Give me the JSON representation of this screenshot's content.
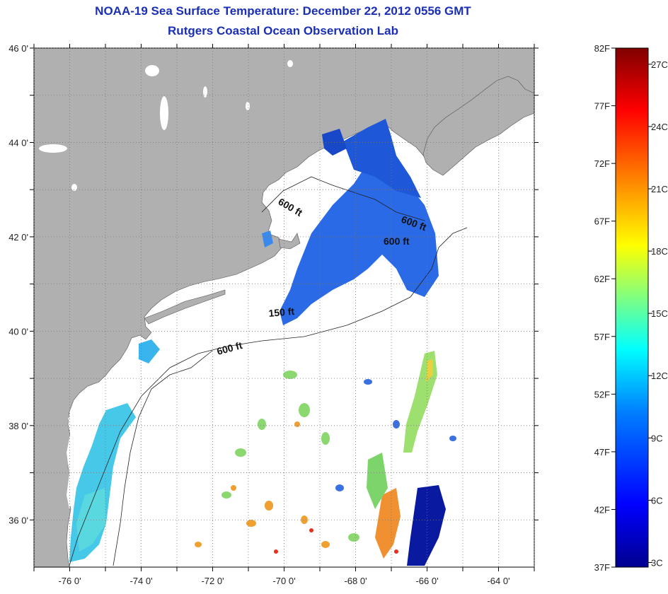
{
  "title": {
    "line1": "NOAA-19 Sea Surface Temperature:  December 22, 2012 0556 GMT",
    "line2": "Rutgers Coastal Ocean Observation Lab"
  },
  "map": {
    "lon_range": [
      -77,
      -63
    ],
    "lat_range": [
      35,
      46
    ],
    "lat_ticks": [
      {
        "value": 46,
        "label": "46 0'"
      },
      {
        "value": 44,
        "label": "44 0'"
      },
      {
        "value": 42,
        "label": "42 0'"
      },
      {
        "value": 40,
        "label": "40 0'"
      },
      {
        "value": 38,
        "label": "38 0'"
      },
      {
        "value": 36,
        "label": "36 0'"
      }
    ],
    "lon_ticks": [
      {
        "value": -76,
        "label": "-76 0'"
      },
      {
        "value": -74,
        "label": "-74 0'"
      },
      {
        "value": -72,
        "label": "-72 0'"
      },
      {
        "value": -70,
        "label": "-70 0'"
      },
      {
        "value": -68,
        "label": "-68 0'"
      },
      {
        "value": -66,
        "label": "-66 0'"
      },
      {
        "value": -64,
        "label": "-64 0'"
      }
    ],
    "contour_labels": [
      {
        "text": "600 ft"
      },
      {
        "text": "600 ft"
      },
      {
        "text": "600 ft"
      },
      {
        "text": "150 ft"
      },
      {
        "text": "600 ft"
      }
    ]
  },
  "colorbar": {
    "fahrenheit": [
      {
        "value": 82,
        "label": "82F"
      },
      {
        "value": 77,
        "label": "77F"
      },
      {
        "value": 72,
        "label": "72F"
      },
      {
        "value": 67,
        "label": "67F"
      },
      {
        "value": 62,
        "label": "62F"
      },
      {
        "value": 57,
        "label": "57F"
      },
      {
        "value": 52,
        "label": "52F"
      },
      {
        "value": 47,
        "label": "47F"
      },
      {
        "value": 42,
        "label": "42F"
      },
      {
        "value": 37,
        "label": "37F"
      }
    ],
    "celsius": [
      {
        "value": 27,
        "label": "27C"
      },
      {
        "value": 24,
        "label": "24C"
      },
      {
        "value": 21,
        "label": "21C"
      },
      {
        "value": 18,
        "label": "18C"
      },
      {
        "value": 15,
        "label": "15C"
      },
      {
        "value": 12,
        "label": "12C"
      },
      {
        "value": 9,
        "label": "9C"
      },
      {
        "value": 6,
        "label": "6C"
      },
      {
        "value": 3,
        "label": "3C"
      }
    ],
    "colors": [
      "#00008f",
      "#0000ff",
      "#0080ff",
      "#00ffff",
      "#80ff80",
      "#ffff00",
      "#ff8000",
      "#ff0000",
      "#800000"
    ]
  },
  "colors": {
    "land": "#b0b0b0",
    "ocean": "#ffffff",
    "title": "#1a2fb5"
  }
}
